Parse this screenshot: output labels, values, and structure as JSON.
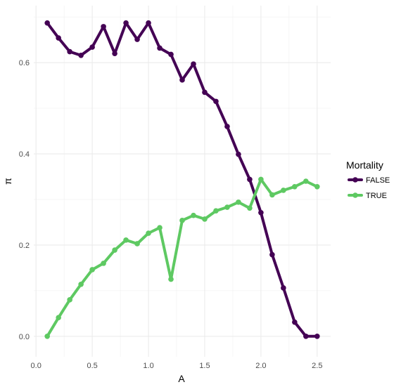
{
  "chart_data": {
    "type": "line",
    "xlabel": "A",
    "ylabel": "π",
    "xlim": [
      -0.02,
      2.62
    ],
    "ylim": [
      -0.045,
      0.725
    ],
    "x_ticks": [
      0.0,
      0.5,
      1.0,
      1.5,
      2.0,
      2.5
    ],
    "x_tick_labels": [
      "0.0",
      "0.5",
      "1.0",
      "1.5",
      "2.0",
      "2.5"
    ],
    "y_ticks": [
      0.0,
      0.2,
      0.4,
      0.6
    ],
    "y_tick_labels": [
      "0.0",
      "0.2",
      "0.4",
      "0.6"
    ],
    "grid": true,
    "legend": {
      "title": "Mortality",
      "position": "right"
    },
    "x": [
      0.1,
      0.2,
      0.3,
      0.4,
      0.5,
      0.6,
      0.7,
      0.8,
      0.9,
      1.0,
      1.1,
      1.2,
      1.3,
      1.4,
      1.5,
      1.6,
      1.7,
      1.8,
      1.9,
      2.0,
      2.1,
      2.2,
      2.3,
      2.4,
      2.5
    ],
    "series": [
      {
        "name": "FALSE",
        "color": "#440154",
        "values": [
          0.687,
          0.654,
          0.624,
          0.616,
          0.634,
          0.679,
          0.62,
          0.687,
          0.651,
          0.687,
          0.632,
          0.618,
          0.562,
          0.597,
          0.535,
          0.515,
          0.46,
          0.399,
          0.344,
          0.271,
          0.179,
          0.106,
          0.031,
          0.0,
          0.0
        ]
      },
      {
        "name": "TRUE",
        "color": "#5ec962",
        "values": [
          0.0,
          0.041,
          0.08,
          0.114,
          0.146,
          0.16,
          0.189,
          0.211,
          0.203,
          0.226,
          0.238,
          0.125,
          0.254,
          0.265,
          0.257,
          0.275,
          0.283,
          0.294,
          0.281,
          0.344,
          0.31,
          0.32,
          0.328,
          0.34,
          0.328
        ]
      }
    ]
  }
}
